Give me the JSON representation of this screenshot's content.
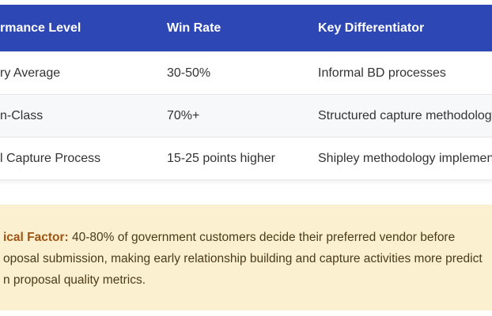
{
  "table": {
    "headers": [
      "rmance Level",
      "Win Rate",
      "Key Differentiator"
    ],
    "rows": [
      {
        "level": "ry Average",
        "win_rate": "30-50%",
        "differentiator": "Informal BD processes"
      },
      {
        "level": "n-Class",
        "win_rate": "70%+",
        "differentiator": "Structured capture methodology"
      },
      {
        "level": "l Capture Process",
        "win_rate": "15-25 points higher",
        "differentiator": "Shipley methodology implementati"
      }
    ]
  },
  "callout": {
    "label": "ical Factor:",
    "line1": " 40-80% of government customers decide their preferred vendor before",
    "line2": "oposal submission, making early relationship building and capture activities more predict",
    "line3": "n proposal quality metrics."
  },
  "colors": {
    "header_bg": "#2d47b5",
    "callout_bg": "#fbf1d0",
    "callout_border": "#e0a800",
    "callout_label": "#a05414"
  }
}
